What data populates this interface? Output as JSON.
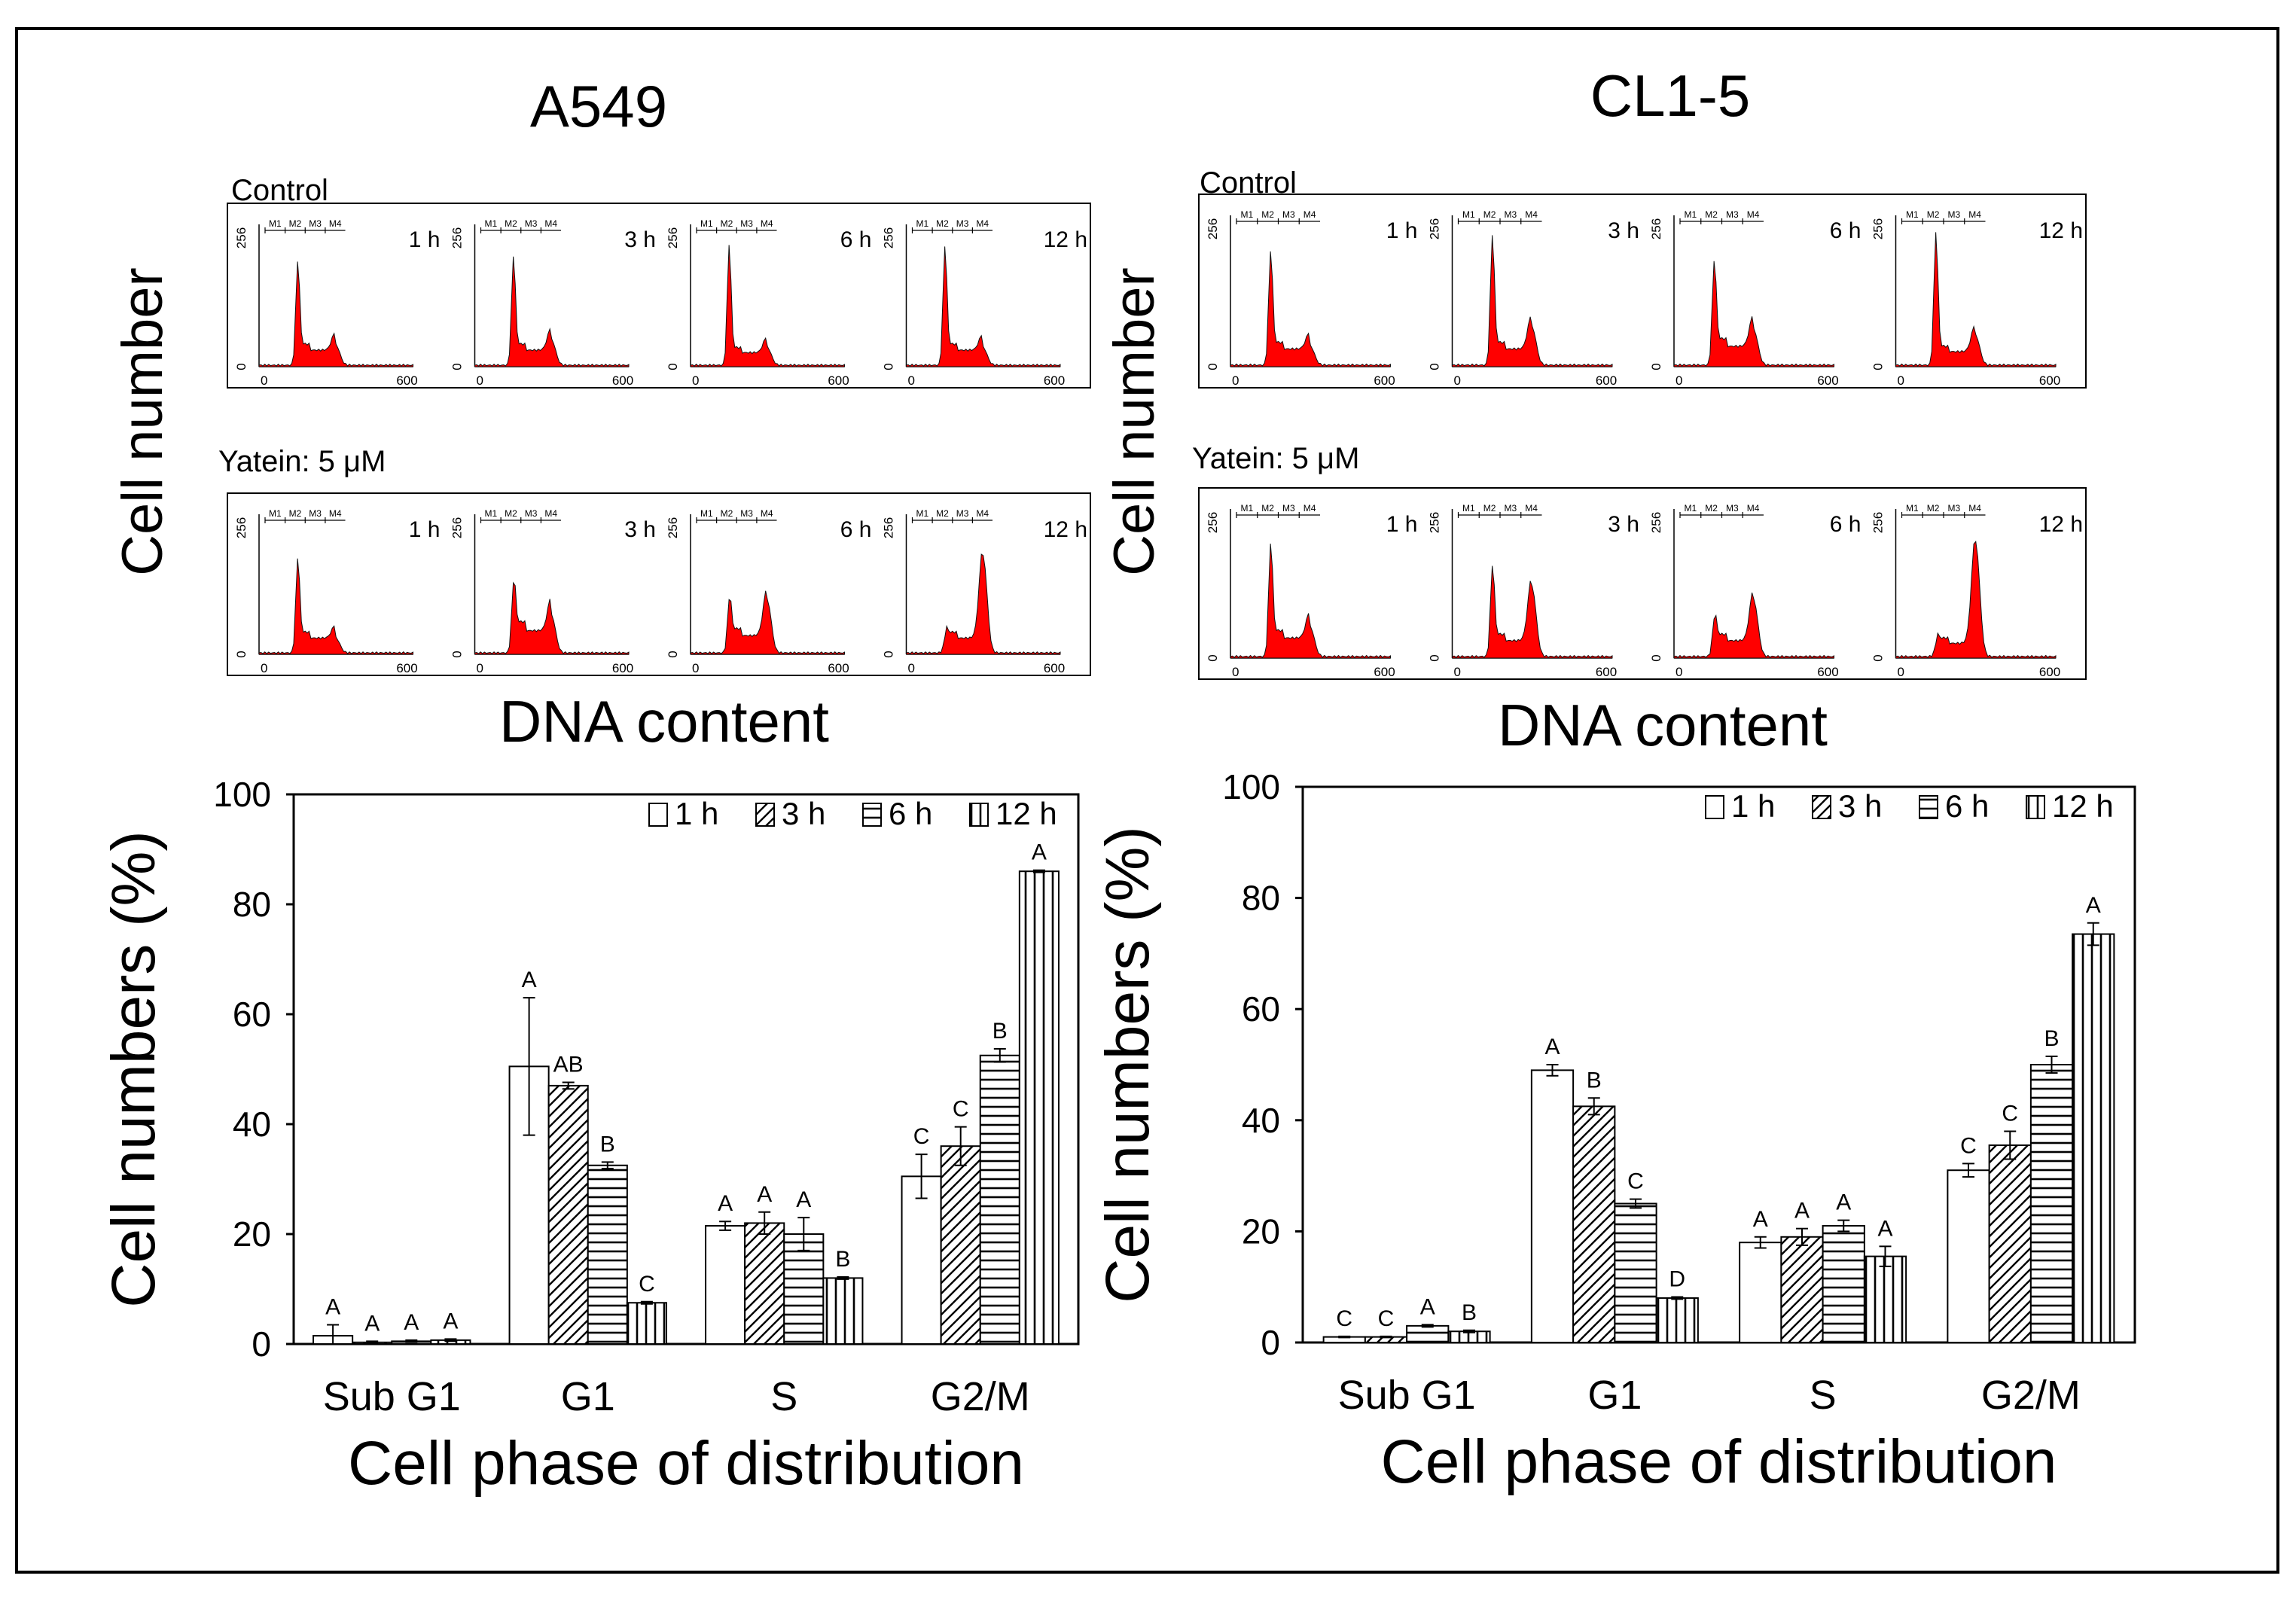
{
  "figure": {
    "panels": [
      {
        "title": "A549",
        "hist_ylabel": "Cell number",
        "hist_xlabel": "DNA content",
        "rows": [
          {
            "label": "Control",
            "profiles": [
              {
                "time": "1 h",
                "g1": 0.78,
                "g2": 0.16,
                "s": 0.12
              },
              {
                "time": "3 h",
                "g1": 0.82,
                "g2": 0.2,
                "s": 0.12
              },
              {
                "time": "6 h",
                "g1": 0.92,
                "g2": 0.14,
                "s": 0.1
              },
              {
                "time": "12 h",
                "g1": 0.9,
                "g2": 0.14,
                "s": 0.12
              }
            ]
          },
          {
            "label": "Yatein: 5 μM",
            "profiles": [
              {
                "time": "1 h",
                "g1": 0.72,
                "g2": 0.12,
                "s": 0.12
              },
              {
                "time": "3 h",
                "g1": 0.5,
                "g2": 0.3,
                "s": 0.18
              },
              {
                "time": "6 h",
                "g1": 0.38,
                "g2": 0.42,
                "s": 0.14
              },
              {
                "time": "12 h",
                "g1": 0.08,
                "g2": 0.78,
                "s": 0.12
              }
            ]
          }
        ],
        "hist_axis": {
          "ymax_label": "256",
          "ymin_label": "0",
          "xmin_label": "0",
          "xmax_label": "600",
          "markers": [
            "M1",
            "M2",
            "M3",
            "M4"
          ]
        }
      },
      {
        "title": "CL1-5",
        "hist_ylabel": "Cell number",
        "hist_xlabel": "DNA content",
        "rows": [
          {
            "label": "Control",
            "profiles": [
              {
                "time": "1 h",
                "g1": 0.8,
                "g2": 0.14,
                "s": 0.12
              },
              {
                "time": "3 h",
                "g1": 0.92,
                "g2": 0.28,
                "s": 0.12
              },
              {
                "time": "6 h",
                "g1": 0.72,
                "g2": 0.26,
                "s": 0.14
              },
              {
                "time": "12 h",
                "g1": 0.95,
                "g2": 0.22,
                "s": 0.1
              }
            ]
          },
          {
            "label": "Yatein: 5 μM",
            "profiles": [
              {
                "time": "1 h",
                "g1": 0.8,
                "g2": 0.22,
                "s": 0.14
              },
              {
                "time": "3 h",
                "g1": 0.64,
                "g2": 0.52,
                "s": 0.12
              },
              {
                "time": "6 h",
                "g1": 0.24,
                "g2": 0.42,
                "s": 0.12
              },
              {
                "time": "12 h",
                "g1": 0.06,
                "g2": 0.86,
                "s": 0.1
              }
            ]
          }
        ],
        "hist_axis": {
          "ymax_label": "256",
          "ymin_label": "0",
          "xmin_label": "0",
          "xmax_label": "600",
          "markers": [
            "M1",
            "M2",
            "M3",
            "M4"
          ]
        }
      }
    ]
  },
  "chart_data": [
    {
      "type": "bar",
      "cell_line": "A549",
      "title": "",
      "xlabel": "Cell phase of distribution",
      "ylabel": "Cell numbers (%)",
      "ylim": [
        0,
        100
      ],
      "yticks": [
        0,
        20,
        40,
        60,
        80,
        100
      ],
      "categories": [
        "Sub G1",
        "G1",
        "S",
        "G2/M"
      ],
      "legend": "top-right",
      "series": [
        {
          "name": "1 h",
          "values": [
            1.5,
            50.5,
            21.5,
            30.5
          ],
          "errors": [
            2.0,
            12.5,
            0.8,
            4.0
          ],
          "letters": [
            "A",
            "A",
            "A",
            "C"
          ]
        },
        {
          "name": "3 h",
          "values": [
            0.3,
            47.0,
            22.0,
            36.0
          ],
          "errors": [
            0.2,
            0.6,
            2.0,
            3.5
          ],
          "letters": [
            "A",
            "AB",
            "A",
            "C"
          ]
        },
        {
          "name": "6 h",
          "values": [
            0.5,
            32.5,
            20.0,
            52.5
          ],
          "errors": [
            0.2,
            0.6,
            3.0,
            1.2
          ],
          "letters": [
            "A",
            "B",
            "A",
            "B"
          ]
        },
        {
          "name": "12 h",
          "values": [
            0.7,
            7.5,
            12.0,
            86.0
          ],
          "errors": [
            0.2,
            0.2,
            0.2,
            0.2
          ],
          "letters": [
            "A",
            "C",
            "B",
            "A"
          ]
        }
      ]
    },
    {
      "type": "bar",
      "cell_line": "CL1-5",
      "title": "",
      "xlabel": "Cell phase of distribution",
      "ylabel": "Cell numbers (%)",
      "ylim": [
        0,
        100
      ],
      "yticks": [
        0,
        20,
        40,
        60,
        80,
        100
      ],
      "categories": [
        "Sub G1",
        "G1",
        "S",
        "G2/M"
      ],
      "legend": "top-right",
      "series": [
        {
          "name": "1 h",
          "values": [
            1.0,
            49.0,
            18.0,
            31.0
          ],
          "errors": [
            0.1,
            1.0,
            1.0,
            1.2
          ],
          "letters": [
            "C",
            "A",
            "A",
            "C"
          ]
        },
        {
          "name": "3 h",
          "values": [
            1.0,
            42.5,
            19.0,
            35.5
          ],
          "errors": [
            0.1,
            1.5,
            1.5,
            2.5
          ],
          "letters": [
            "C",
            "B",
            "A",
            "C"
          ]
        },
        {
          "name": "6 h",
          "values": [
            3.0,
            25.0,
            21.0,
            50.0
          ],
          "errors": [
            0.2,
            0.8,
            1.0,
            1.5
          ],
          "letters": [
            "A",
            "C",
            "A",
            "B"
          ]
        },
        {
          "name": "12 h",
          "values": [
            2.0,
            8.0,
            15.5,
            73.5
          ],
          "errors": [
            0.2,
            0.2,
            1.8,
            2.0
          ],
          "letters": [
            "B",
            "D",
            "A",
            "A"
          ]
        }
      ]
    }
  ]
}
